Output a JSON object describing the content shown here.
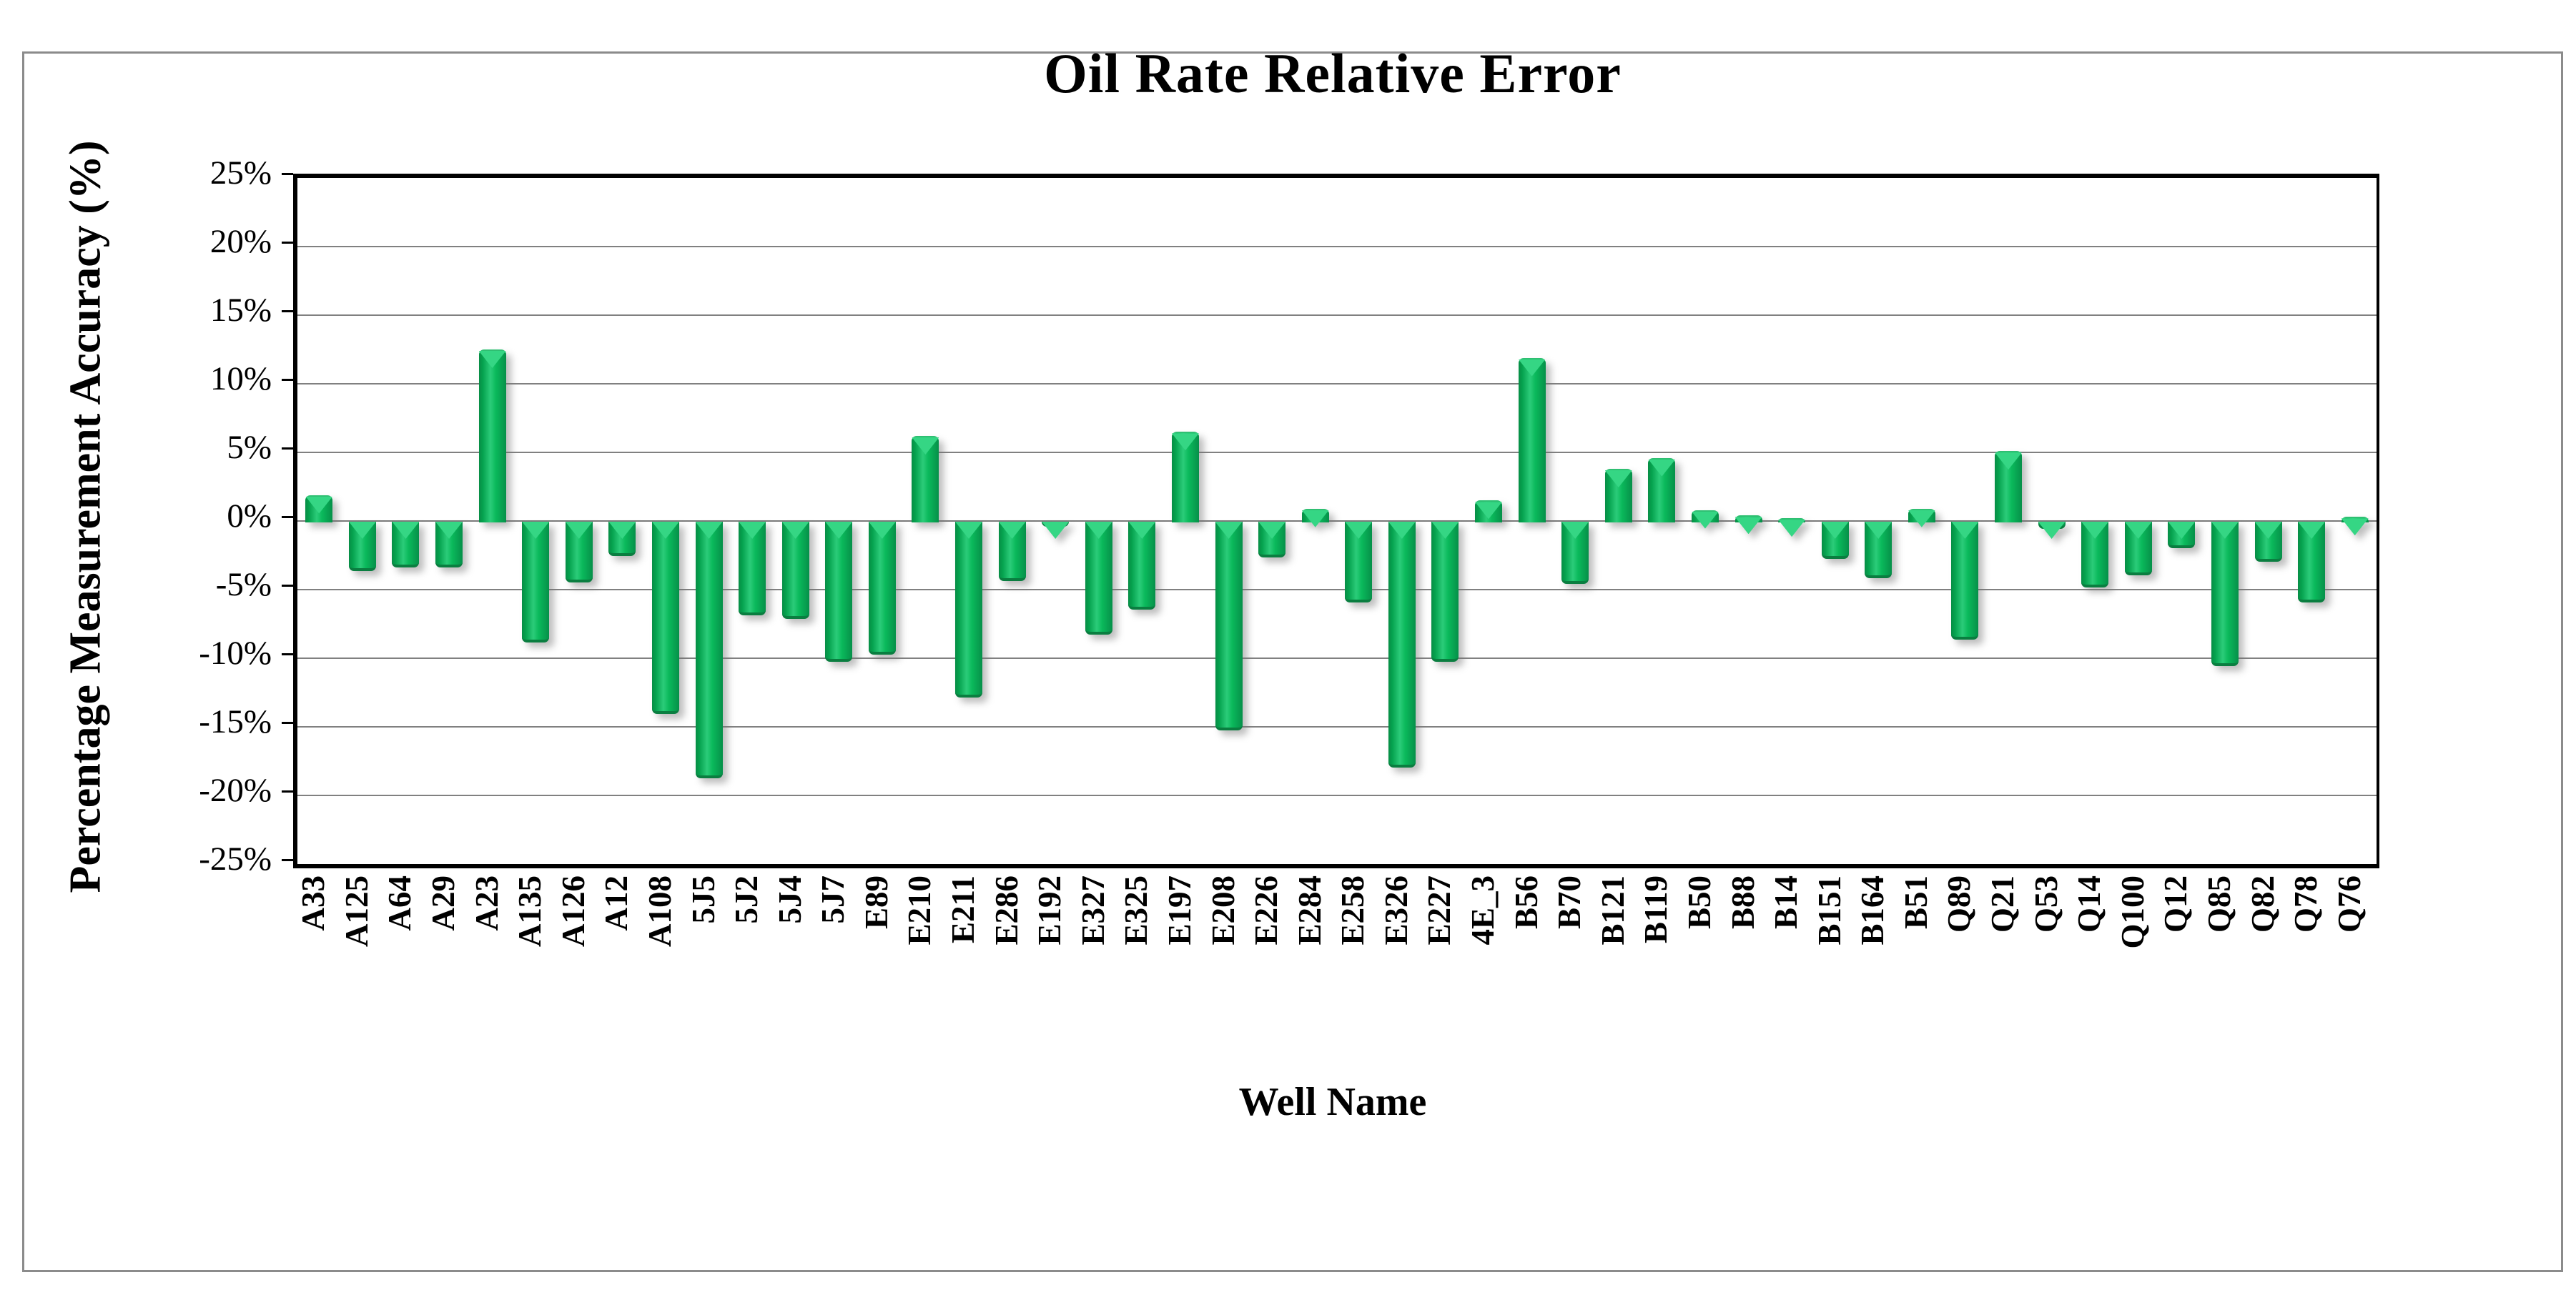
{
  "page": {
    "background": "#ffffff",
    "frame_border_color": "#8b8b8b",
    "gridline_color": "#808080",
    "axis_color": "#000000",
    "bar_color": "#00B050"
  },
  "chart_data": {
    "type": "bar",
    "title": "Oil Rate Relative Error",
    "xlabel": "Well Name",
    "ylabel": "Percentage Measurement Accuracy (%)",
    "ylim": [
      -25,
      25
    ],
    "ytick_step": 5,
    "grid": true,
    "legend": false,
    "ytick_labels": [
      "25%",
      "20%",
      "15%",
      "10%",
      "5%",
      "0%",
      "-5%",
      "-10%",
      "-15%",
      "-20%",
      "-25%"
    ],
    "categories": [
      "A33",
      "A125",
      "A64",
      "A29",
      "A23",
      "A135",
      "A126",
      "A12",
      "A108",
      "5J5",
      "5J2",
      "5J4",
      "5J7",
      "E89",
      "E210",
      "E211",
      "E286",
      "E192",
      "E327",
      "E325",
      "E197",
      "E208",
      "E226",
      "E284",
      "E258",
      "E326",
      "E227",
      "4E_3",
      "B56",
      "B70",
      "B121",
      "B119",
      "B50",
      "B88",
      "B14",
      "B151",
      "B164",
      "B51",
      "Q89",
      "Q21",
      "Q53",
      "Q14",
      "Q100",
      "Q12",
      "Q85",
      "Q82",
      "Q78",
      "Q76"
    ],
    "values": [
      1.9,
      -3.4,
      -3.1,
      -3.1,
      12.5,
      -8.6,
      -4.2,
      -2.3,
      -13.8,
      -18.5,
      -6.6,
      -6.9,
      -10.0,
      -9.5,
      6.2,
      -12.6,
      -4.1,
      -0.1,
      -8.0,
      -6.2,
      6.5,
      -15.0,
      -2.4,
      0.9,
      -5.7,
      -17.7,
      -10.0,
      1.5,
      11.9,
      -4.3,
      3.8,
      4.6,
      0.8,
      0.4,
      0.2,
      -2.5,
      -3.9,
      0.9,
      -8.4,
      5.1,
      -0.3,
      -4.6,
      -3.7,
      -1.7,
      -10.3,
      -2.7,
      -5.7,
      0.3
    ]
  }
}
